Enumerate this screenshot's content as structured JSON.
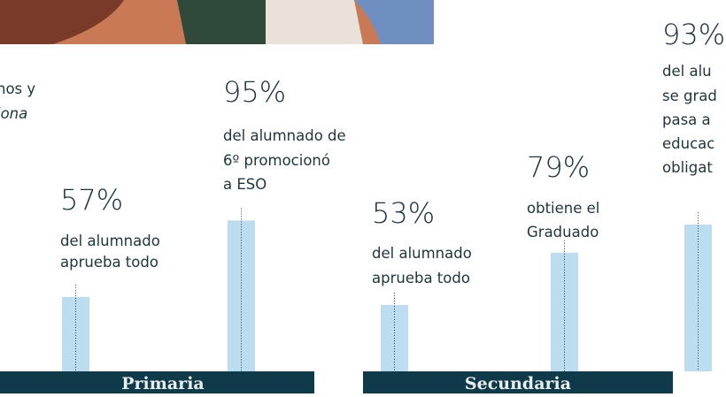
{
  "chart_data": {
    "type": "bar",
    "color": "#bcdcef",
    "ylim": [
      20,
      100
    ],
    "values": [
      57,
      95,
      53,
      79,
      93
    ],
    "value_labels": [
      "57%",
      "95%",
      "53%",
      "79%",
      "93%"
    ],
    "annotations": [
      [
        "del alumnado",
        "aprueba todo"
      ],
      [
        "del alumnado de",
        "6º promocionó",
        "a ESO"
      ],
      [
        "del alumnado",
        "aprueba todo"
      ],
      [
        "obtiene el",
        "Graduado"
      ],
      [
        "del alu",
        "se grad",
        "pasa a",
        "educac",
        "obligat"
      ]
    ],
    "groups": [
      "Primaria",
      "Secundaria"
    ],
    "side_text": [
      "nos y",
      "iona"
    ]
  }
}
